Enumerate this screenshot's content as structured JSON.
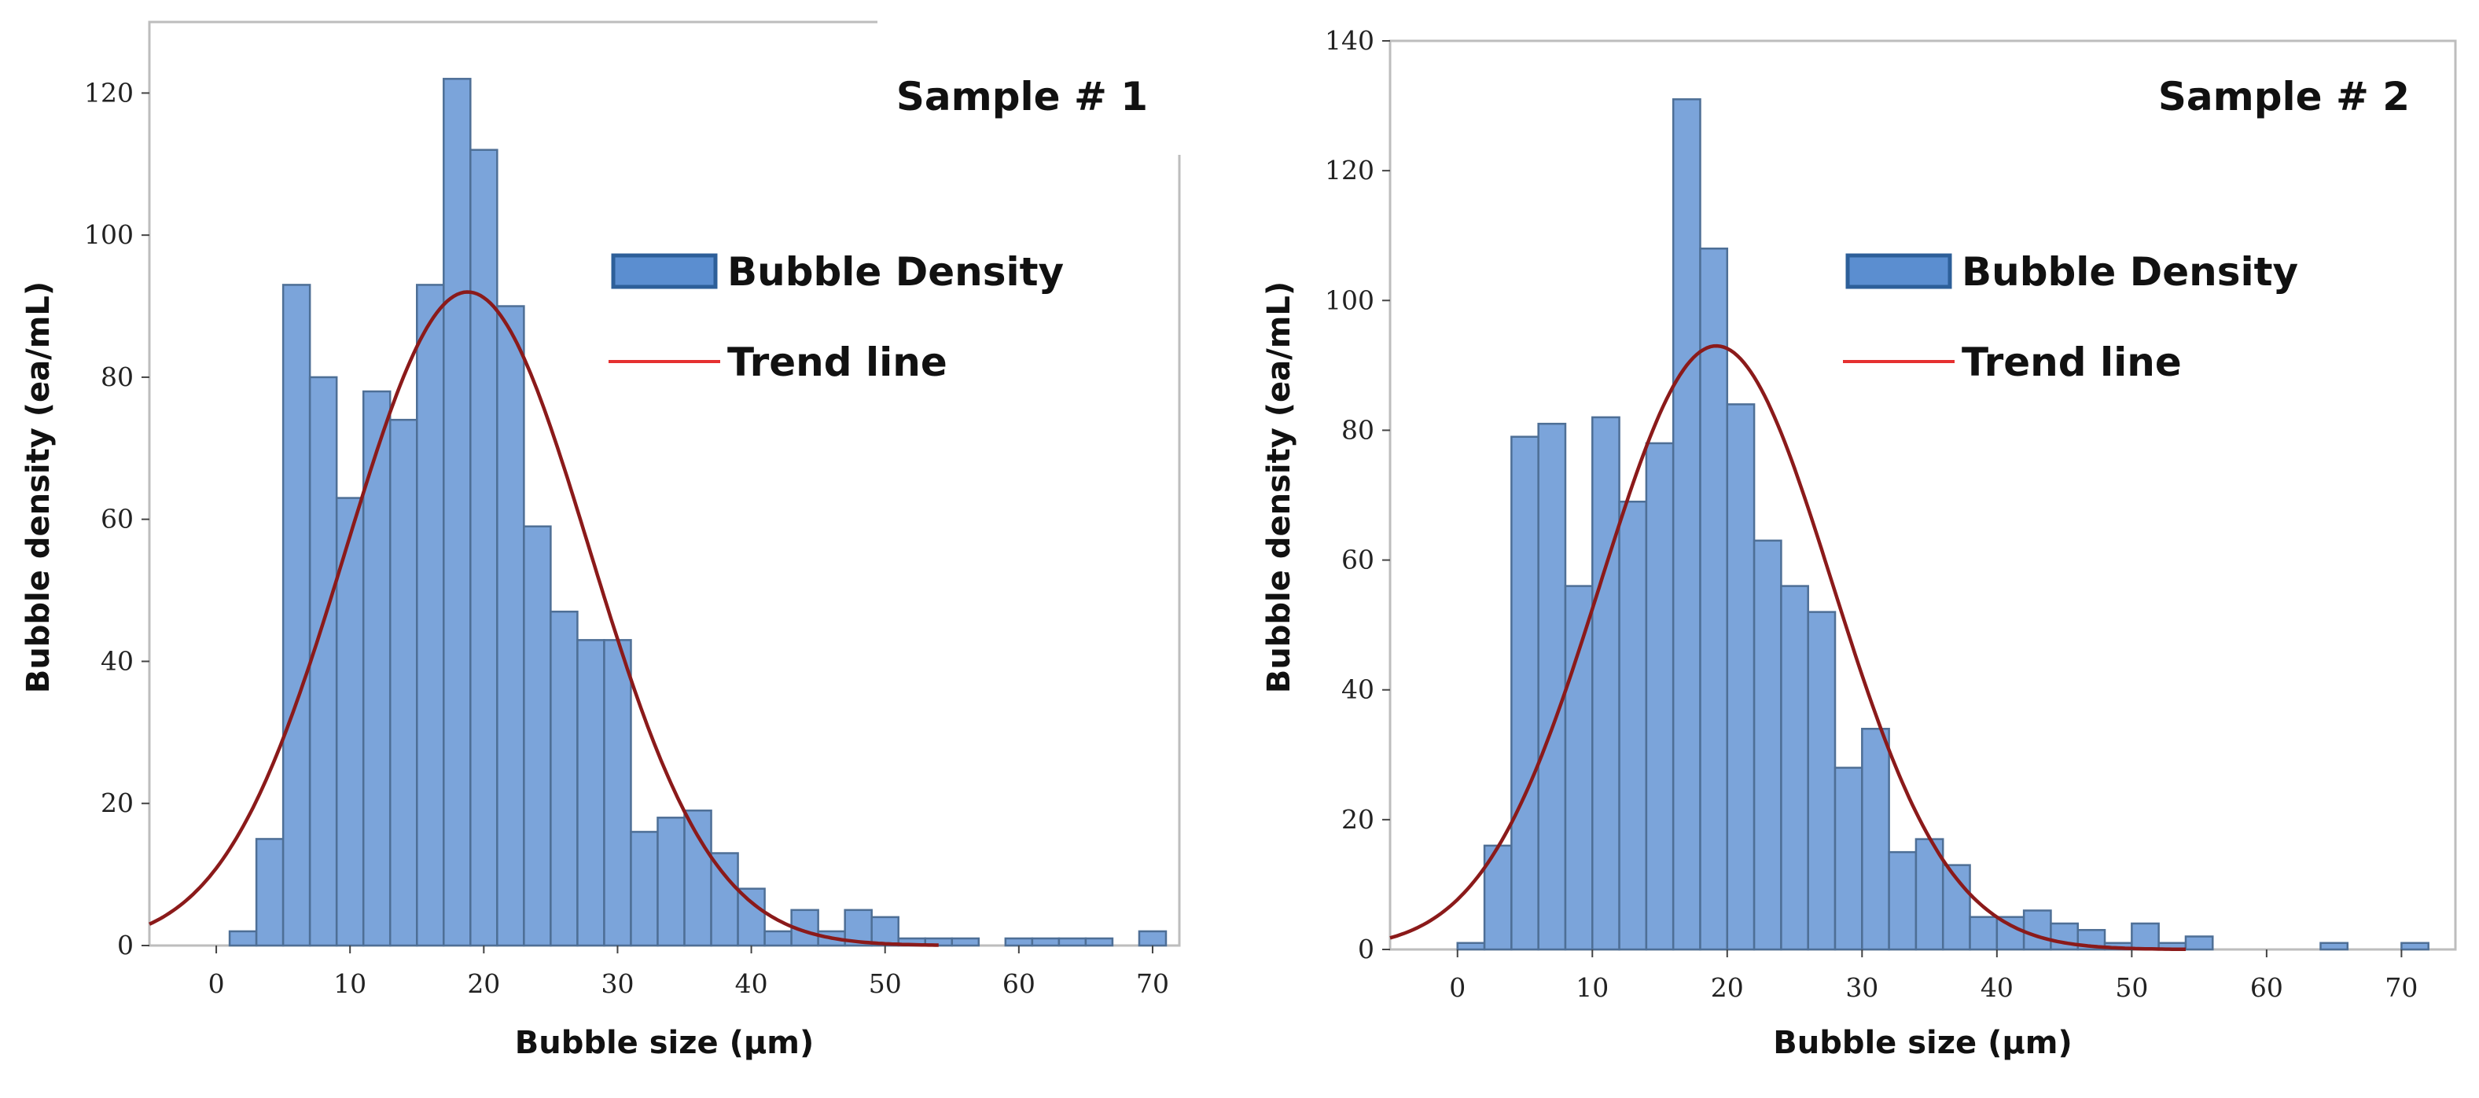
{
  "colors": {
    "bar_fill": "#7BA4DA",
    "bar_stroke": "#4E6F96",
    "legend_fill": "#5B8ED0",
    "legend_stroke": "#2D5F99",
    "trend": "#8B1A1A",
    "legend_trend": "#E53030"
  },
  "chart_data": [
    {
      "type": "bar",
      "title": "Sample # 1",
      "xlabel": "Bubble size (µm)",
      "ylabel": "Bubble density (ea/mL)",
      "xlim": [
        -5,
        72
      ],
      "ylim": [
        0,
        130
      ],
      "xticks": [
        0,
        10,
        20,
        30,
        40,
        50,
        60,
        70
      ],
      "yticks": [
        0,
        20,
        40,
        60,
        80,
        100,
        120
      ],
      "bin_width": 2,
      "bin_centers": [
        2,
        4,
        6,
        8,
        10,
        12,
        14,
        16,
        18,
        20,
        22,
        24,
        26,
        28,
        30,
        32,
        34,
        36,
        38,
        40,
        42,
        44,
        46,
        48,
        50,
        52,
        54,
        56,
        58,
        60,
        62,
        64,
        66,
        68,
        70
      ],
      "values": [
        2,
        15,
        93,
        80,
        63,
        78,
        74,
        93,
        122,
        112,
        90,
        59,
        47,
        43,
        43,
        16,
        18,
        19,
        13,
        8,
        2,
        5,
        2,
        5,
        4,
        1,
        1,
        1,
        0,
        1,
        1,
        1,
        1,
        0,
        2
      ],
      "trend": {
        "type": "normal",
        "peak": 92,
        "mean": 18.8,
        "sd": 9.1,
        "x_range": [
          -5,
          54
        ]
      },
      "legend": {
        "position": "upper-right",
        "entries": [
          "Bubble Density",
          "Trend line"
        ]
      }
    },
    {
      "type": "bar",
      "title": "Sample # 2",
      "xlabel": "Bubble size (µm)",
      "ylabel": "Bubble density (ea/mL)",
      "xlim": [
        -5,
        74
      ],
      "ylim": [
        0,
        140
      ],
      "xticks": [
        0,
        10,
        20,
        30,
        40,
        50,
        60,
        70
      ],
      "yticks": [
        0,
        20,
        40,
        60,
        80,
        100,
        120,
        140
      ],
      "bin_width": 2,
      "bin_centers": [
        1,
        3,
        5,
        7,
        9,
        11,
        13,
        15,
        17,
        19,
        21,
        23,
        25,
        27,
        29,
        31,
        33,
        35,
        37,
        39,
        41,
        43,
        45,
        47,
        49,
        51,
        53,
        55,
        57,
        59,
        61,
        63,
        65,
        67,
        69,
        71,
        73
      ],
      "values": [
        1,
        16,
        79,
        81,
        56,
        82,
        69,
        78,
        131,
        108,
        84,
        63,
        56,
        52,
        28,
        34,
        15,
        17,
        13,
        5,
        5,
        6,
        4,
        3,
        1,
        4,
        1,
        2,
        0,
        0,
        0,
        0,
        1,
        0,
        0,
        1,
        0
      ],
      "trend": {
        "type": "normal",
        "peak": 93,
        "mean": 19.2,
        "sd": 8.6,
        "x_range": [
          -5,
          54
        ]
      },
      "legend": {
        "position": "upper-right",
        "entries": [
          "Bubble Density",
          "Trend line"
        ]
      }
    }
  ]
}
